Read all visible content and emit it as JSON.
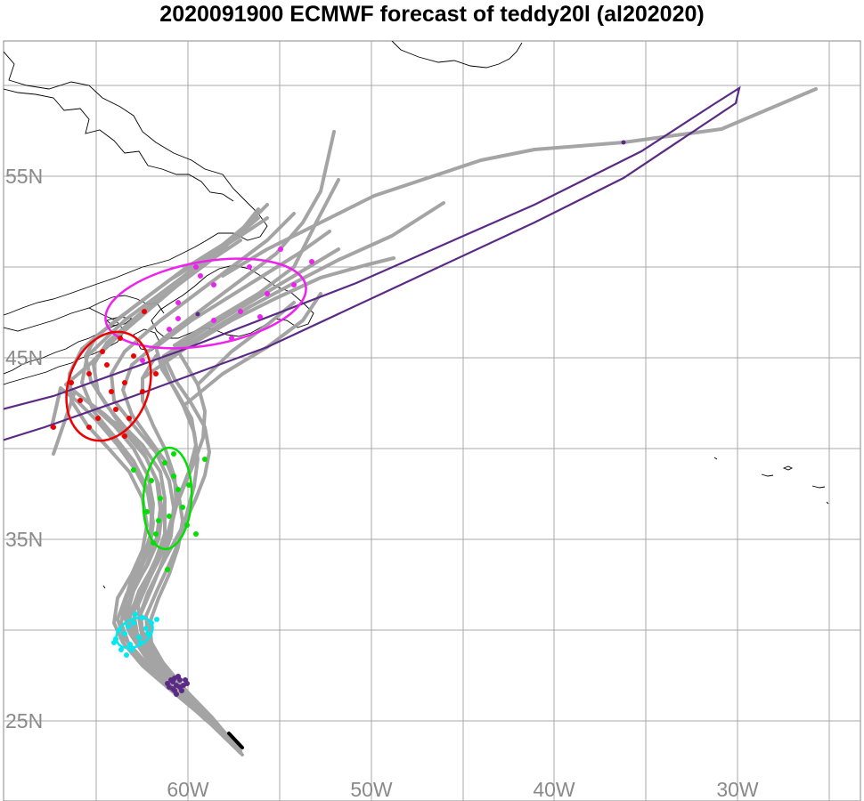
{
  "title": "2020091900 ECMWF forecast of teddy20l (al202020)",
  "lat_labels": [
    "55N",
    "45N",
    "35N",
    "25N"
  ],
  "lon_labels": [
    "60W",
    "50W",
    "40W",
    "30W"
  ],
  "colors": {
    "ensemble_track": "#a0a0a0",
    "grid": "#a8a8a8",
    "coast": "#000000",
    "current_position": "#000000",
    "day1": "#5b2a86",
    "day2": "#00e8f0",
    "day3": "#00e000",
    "day4": "#ee0000",
    "day5": "#ee22ee",
    "extended": "#5b2a86"
  }
}
